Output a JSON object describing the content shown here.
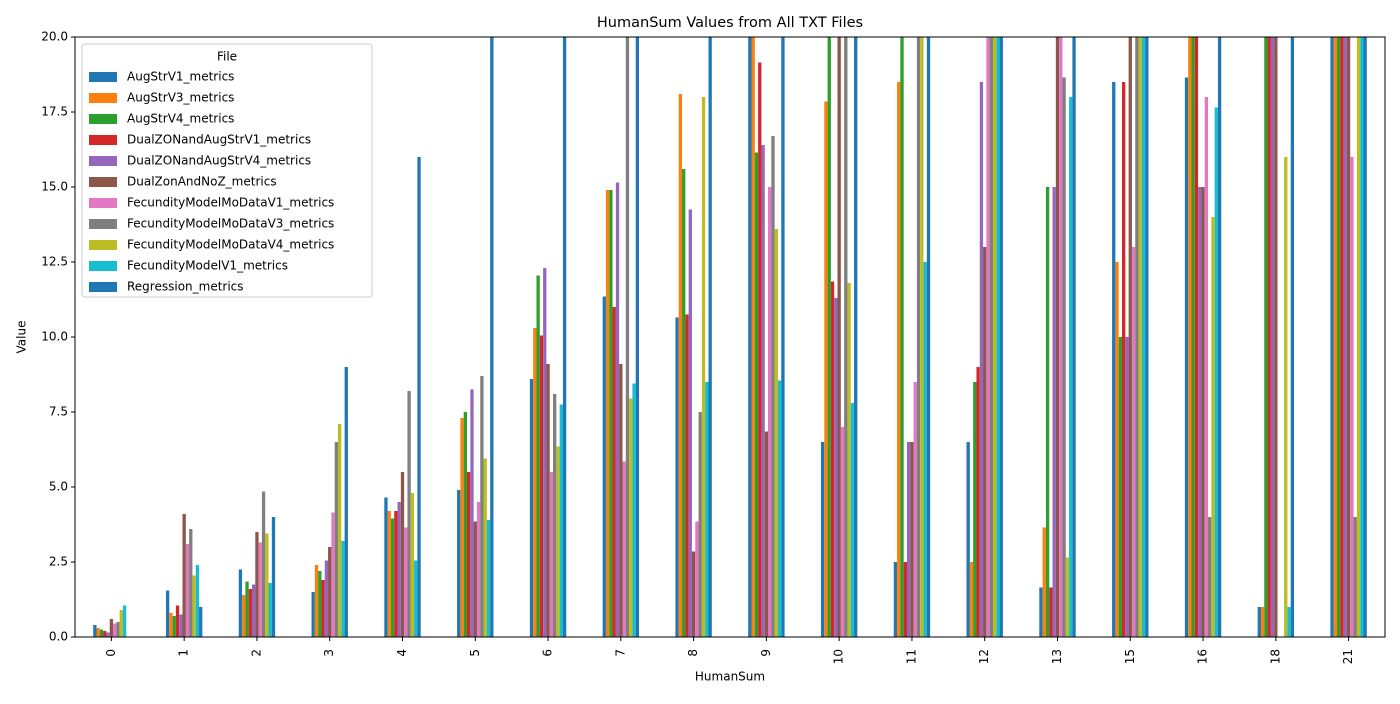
{
  "chart_data": {
    "type": "bar",
    "title": "HumanSum Values from All TXT Files",
    "x_label": "HumanSum",
    "y_label": "Value",
    "legend_title": "File",
    "legend_position": "upper left",
    "categories": [
      "0",
      "1",
      "2",
      "3",
      "4",
      "5",
      "6",
      "7",
      "8",
      "9",
      "10",
      "11",
      "12",
      "13",
      "15",
      "16",
      "18",
      "21"
    ],
    "ylim": [
      0,
      20
    ],
    "yticks": [
      {
        "value": 0,
        "label": "0.0"
      },
      2.5,
      {
        "value": 5,
        "label": "5.0"
      },
      7.5,
      {
        "value": 10,
        "label": "10.0"
      },
      12.5,
      {
        "value": 15,
        "label": "15.0"
      },
      17.5,
      {
        "value": 20,
        "label": "20.0"
      }
    ],
    "series": [
      {
        "name": "AugStrV1_metrics",
        "color": "#1f77b4",
        "values": [
          0.4,
          1.55,
          2.25,
          1.5,
          4.65,
          4.9,
          8.6,
          11.35,
          10.65,
          20,
          6.5,
          2.5,
          6.5,
          1.65,
          18.5,
          18.65,
          1.0,
          20
        ]
      },
      {
        "name": "AugStrV3_metrics",
        "color": "#ff7f0e",
        "values": [
          0.3,
          0.8,
          1.4,
          2.4,
          4.2,
          7.3,
          10.3,
          14.9,
          18.1,
          20,
          17.85,
          18.5,
          2.5,
          3.65,
          12.5,
          20,
          1.0,
          20
        ]
      },
      {
        "name": "AugStrV4_metrics",
        "color": "#2ca02c",
        "values": [
          0.25,
          0.7,
          1.85,
          2.2,
          3.95,
          7.5,
          12.05,
          14.9,
          15.6,
          16.15,
          20,
          20,
          8.5,
          15.0,
          10.0,
          20,
          20,
          20
        ]
      },
      {
        "name": "DualZONandAugStrV1_metrics",
        "color": "#d62728",
        "values": [
          0.2,
          1.05,
          1.6,
          1.9,
          4.2,
          5.5,
          10.05,
          11.0,
          10.75,
          19.15,
          11.85,
          2.5,
          9.0,
          1.65,
          18.5,
          20,
          20,
          20
        ]
      },
      {
        "name": "DualZONandAugStrV4_metrics",
        "color": "#9467bd",
        "values": [
          0.15,
          0.75,
          1.75,
          2.55,
          4.5,
          8.25,
          12.3,
          15.15,
          14.25,
          16.4,
          11.3,
          6.5,
          18.5,
          15.0,
          10.0,
          15.0,
          20,
          20
        ]
      },
      {
        "name": "DualZonAndNoZ_metrics",
        "color": "#8c564b",
        "values": [
          0.6,
          4.1,
          3.5,
          3.0,
          5.5,
          3.85,
          9.1,
          9.1,
          2.85,
          6.85,
          20,
          6.5,
          13.0,
          20,
          20,
          15.0,
          20,
          20
        ]
      },
      {
        "name": "FecundityModelMoDataV1_metrics",
        "color": "#e377c2",
        "values": [
          0.45,
          3.1,
          3.15,
          4.15,
          3.65,
          4.5,
          5.5,
          5.85,
          3.85,
          15.0,
          7.0,
          8.5,
          20,
          20,
          13.0,
          18.0,
          0,
          16.0
        ]
      },
      {
        "name": "FecundityModelMoDataV3_metrics",
        "color": "#7f7f7f",
        "values": [
          0.5,
          3.6,
          4.85,
          6.5,
          8.2,
          8.7,
          8.1,
          20,
          7.5,
          16.7,
          20,
          20,
          20,
          18.65,
          20,
          4.0,
          0,
          4.0
        ]
      },
      {
        "name": "FecundityModelMoDataV4_metrics",
        "color": "#bcbd22",
        "values": [
          0.9,
          2.05,
          3.45,
          7.1,
          4.8,
          5.95,
          6.35,
          7.95,
          18.0,
          13.6,
          11.8,
          20,
          20,
          2.65,
          20,
          14.0,
          16.0,
          20
        ]
      },
      {
        "name": "FecundityModelV1_metrics",
        "color": "#17becf",
        "values": [
          1.05,
          2.4,
          1.8,
          3.2,
          2.55,
          3.9,
          7.75,
          8.45,
          8.5,
          8.55,
          7.8,
          12.5,
          20,
          18.0,
          20,
          17.65,
          1.0,
          20
        ]
      },
      {
        "name": "Regression_metrics",
        "color": "#1f77b4",
        "values": [
          0,
          1.0,
          4.0,
          9.0,
          16.0,
          20,
          20,
          20,
          20,
          20,
          20,
          20,
          20,
          20,
          20,
          20,
          20,
          20
        ]
      }
    ]
  }
}
